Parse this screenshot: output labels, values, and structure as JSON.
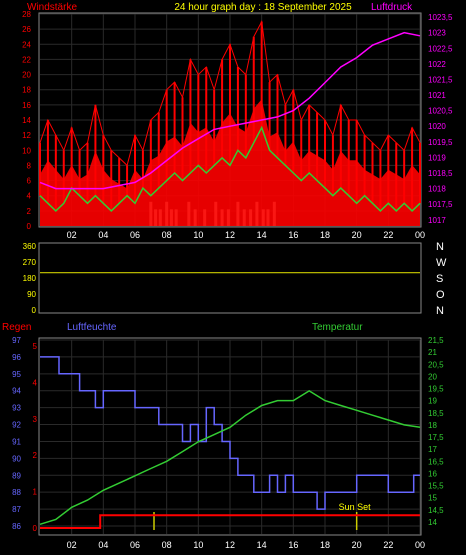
{
  "header": {
    "left_label": "Windstärke",
    "title": "24 hour graph day : 18 September 2025",
    "right_label": "Luftdruck"
  },
  "colors": {
    "wind": "#ff0000",
    "wind_avg": "#33cc33",
    "gust_marks": "#c8ecc8",
    "pressure": "#ff00ff",
    "direction_line": "#cccc00",
    "humidity": "#6666ff",
    "temperature": "#33cc33",
    "rain": "#ff0000",
    "grid": "#2a2a2a",
    "axis": "#ffffff",
    "yellow_text": "#ffff00",
    "blue_text": "#6666ff"
  },
  "chart_data": [
    {
      "id": "wind_pressure",
      "type": "line",
      "title": "24 hour graph day : 18 September 2025",
      "left_axis": {
        "label": "Windstärke",
        "range": [
          0,
          28
        ],
        "ticks": [
          "0",
          "2",
          "4",
          "6",
          "8",
          "10",
          "12",
          "14",
          "16",
          "18",
          "20",
          "22",
          "24",
          "26",
          "28"
        ]
      },
      "right_axis": {
        "label": "Luftdruck",
        "range": [
          1016.8,
          1023.6
        ],
        "ticks": [
          "1017",
          "1017,5",
          "1018",
          "1018,5",
          "1019",
          "1019,5",
          "1020",
          "1020,5",
          "1021",
          "1021,5",
          "1022",
          "1022,5",
          "1023",
          "1023,5"
        ]
      },
      "x_ticks": [
        "02",
        "04",
        "06",
        "08",
        "10",
        "12",
        "14",
        "16",
        "18",
        "20",
        "22",
        "00"
      ],
      "x_range": [
        0,
        24
      ],
      "series": [
        {
          "name": "Luftdruck",
          "axis": "right",
          "x": [
            0,
            1,
            2,
            3,
            4,
            5,
            6,
            7,
            8,
            9,
            10,
            11,
            12,
            13,
            14,
            15,
            16,
            17,
            18,
            19,
            20,
            21,
            22,
            23,
            24
          ],
          "values": [
            1018.2,
            1018.0,
            1018.0,
            1018.0,
            1018.0,
            1018.1,
            1018.2,
            1018.5,
            1018.9,
            1019.3,
            1019.6,
            1019.9,
            1020.0,
            1020.1,
            1020.2,
            1020.3,
            1020.5,
            1020.9,
            1021.4,
            1021.9,
            1022.2,
            1022.6,
            1022.8,
            1023.0,
            1022.9
          ]
        },
        {
          "name": "Windstärke",
          "axis": "left",
          "x": [
            0,
            0.5,
            1,
            1.5,
            2,
            2.5,
            3,
            3.5,
            4,
            4.5,
            5,
            5.5,
            6,
            6.5,
            7,
            7.5,
            8,
            8.5,
            9,
            9.5,
            10,
            10.5,
            11,
            11.5,
            12,
            12.5,
            13,
            13.5,
            14,
            14.5,
            15,
            15.5,
            16,
            16.5,
            17,
            17.5,
            18,
            18.5,
            19,
            19.5,
            20,
            20.5,
            21,
            21.5,
            22,
            22.5,
            23,
            23.5,
            24
          ],
          "values": [
            11,
            14,
            12,
            10,
            13,
            10,
            11,
            16,
            12,
            10,
            9,
            8,
            12,
            10,
            14,
            15,
            18,
            19,
            17,
            22,
            20,
            21,
            18,
            22,
            24,
            21,
            20,
            25,
            27,
            19,
            20,
            16,
            18,
            14,
            16,
            15,
            14,
            12,
            16,
            14,
            14,
            12,
            11,
            10,
            12,
            11,
            10,
            13,
            11
          ]
        },
        {
          "name": "Windstärke Mittel",
          "axis": "left",
          "x": [
            0,
            0.5,
            1,
            1.5,
            2,
            2.5,
            3,
            3.5,
            4,
            4.5,
            5,
            5.5,
            6,
            6.5,
            7,
            7.5,
            8,
            8.5,
            9,
            9.5,
            10,
            10.5,
            11,
            11.5,
            12,
            12.5,
            13,
            13.5,
            14,
            14.5,
            15,
            15.5,
            16,
            16.5,
            17,
            17.5,
            18,
            18.5,
            19,
            19.5,
            20,
            20.5,
            21,
            21.5,
            22,
            22.5,
            23,
            23.5,
            24
          ],
          "values": [
            4,
            3,
            2,
            3,
            5,
            4,
            3,
            4,
            3,
            2,
            3,
            4,
            3,
            5,
            4,
            5,
            6,
            7,
            6,
            7,
            8,
            7,
            8,
            9,
            8,
            10,
            9,
            11,
            13,
            10,
            9,
            8,
            7,
            6,
            7,
            6,
            5,
            4,
            5,
            4,
            3,
            4,
            3,
            2,
            3,
            2,
            3,
            2,
            3
          ]
        }
      ]
    },
    {
      "id": "direction",
      "type": "line",
      "left_axis": {
        "range": [
          0,
          360
        ],
        "ticks": [
          "0",
          "90",
          "180",
          "270",
          "360"
        ]
      },
      "right_labels": [
        "N",
        "W",
        "S",
        "O",
        "N"
      ],
      "x_range": [
        0,
        24
      ],
      "series": [
        {
          "name": "Windrichtung",
          "x": [
            0,
            24
          ],
          "values": [
            210,
            210
          ]
        }
      ]
    },
    {
      "id": "rain_humidity_temp",
      "type": "line",
      "labels": {
        "rain": "Regen",
        "humidity": "Luftfeuchte",
        "temperature": "Temperatur",
        "annotation": "Sun Set"
      },
      "left_axis": {
        "label": "Luftfeuchte",
        "range": [
          86,
          97
        ],
        "ticks": [
          "86",
          "87",
          "88",
          "89",
          "90",
          "91",
          "92",
          "93",
          "94",
          "95",
          "96",
          "97"
        ]
      },
      "rain_axis": {
        "label": "Regen",
        "ticks": [
          "0",
          "1",
          "2",
          "3",
          "4",
          "5"
        ]
      },
      "right_axis": {
        "label": "Temperatur",
        "range": [
          13.5,
          21.5
        ],
        "ticks": [
          "14",
          "14,5",
          "15",
          "15,5",
          "16",
          "16,5",
          "17",
          "17,5",
          "18",
          "18,5",
          "19",
          "19,5",
          "20",
          "20,5",
          "21",
          "21,5"
        ]
      },
      "x_ticks": [
        "02",
        "04",
        "06",
        "08",
        "10",
        "12",
        "14",
        "16",
        "18",
        "20",
        "22",
        "00"
      ],
      "x_range": [
        0,
        24
      ],
      "annotation_x": 20,
      "series": [
        {
          "name": "Luftfeuchte",
          "axis": "left",
          "x": [
            0,
            1,
            1.2,
            2,
            2.5,
            3,
            3.5,
            4,
            5,
            6,
            7,
            7.5,
            8,
            8.5,
            9,
            9.5,
            10,
            10.5,
            11,
            11.5,
            12,
            12.5,
            13,
            13.5,
            14,
            14.5,
            15,
            15.5,
            16,
            17,
            17.5,
            18,
            19,
            20,
            21,
            22,
            23,
            23.6,
            24
          ],
          "values": [
            96,
            96,
            95,
            95,
            94,
            94,
            93,
            94,
            94,
            93,
            93,
            92,
            92,
            92,
            91,
            92,
            91,
            93,
            92,
            91,
            90,
            89,
            89,
            88,
            88,
            89,
            88,
            89,
            88,
            88,
            87,
            88,
            88,
            89,
            89,
            88,
            88,
            89,
            89
          ]
        },
        {
          "name": "Temperatur",
          "axis": "right",
          "x": [
            0,
            1,
            2,
            3,
            4,
            5,
            6,
            7,
            8,
            9,
            10,
            11,
            12,
            13,
            14,
            15,
            16,
            17,
            18,
            19,
            20,
            21,
            22,
            23,
            24
          ],
          "values": [
            13.9,
            14.1,
            14.6,
            14.9,
            15.3,
            15.6,
            15.9,
            16.2,
            16.5,
            16.9,
            17.3,
            17.6,
            17.9,
            18.4,
            18.8,
            19.0,
            19.0,
            19.4,
            19.0,
            18.8,
            18.6,
            18.4,
            18.2,
            18.0,
            17.9
          ]
        },
        {
          "name": "Regen",
          "axis": "rain",
          "x": [
            0,
            3.8,
            3.8,
            24
          ],
          "values": [
            0,
            0,
            0.35,
            0.35
          ]
        }
      ]
    }
  ]
}
